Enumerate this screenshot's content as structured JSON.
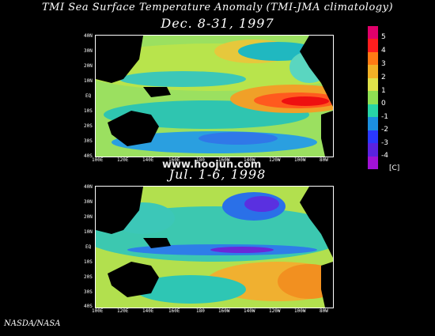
{
  "title": "TMI Sea Surface Temperature Anomaly (TMI-JMA climatology)",
  "maps": [
    {
      "label": "Dec. 8-31, 1997"
    },
    {
      "label": "Jul. 1-6, 1998"
    }
  ],
  "lat_ticks": [
    "40N",
    "30N",
    "20N",
    "10N",
    "EQ",
    "10S",
    "20S",
    "30S",
    "40S"
  ],
  "lon_ticks": [
    "100E",
    "120E",
    "140E",
    "160E",
    "180",
    "160W",
    "140W",
    "120W",
    "100W",
    "80W"
  ],
  "colorbar": {
    "ticks": [
      "5",
      "4",
      "3",
      "2",
      "1",
      "0",
      "-1",
      "-2",
      "-3",
      "-4"
    ],
    "unit": "[C]",
    "colors": [
      "#e0006a",
      "#ff1e1e",
      "#ff7a14",
      "#f2b126",
      "#dfe24a",
      "#8fe052",
      "#27d4a6",
      "#1c8fe0",
      "#2a38ff",
      "#5a22e0",
      "#a012d6"
    ]
  },
  "watermark": "www.hoojun.com",
  "credit": "NASDA/NASA"
}
